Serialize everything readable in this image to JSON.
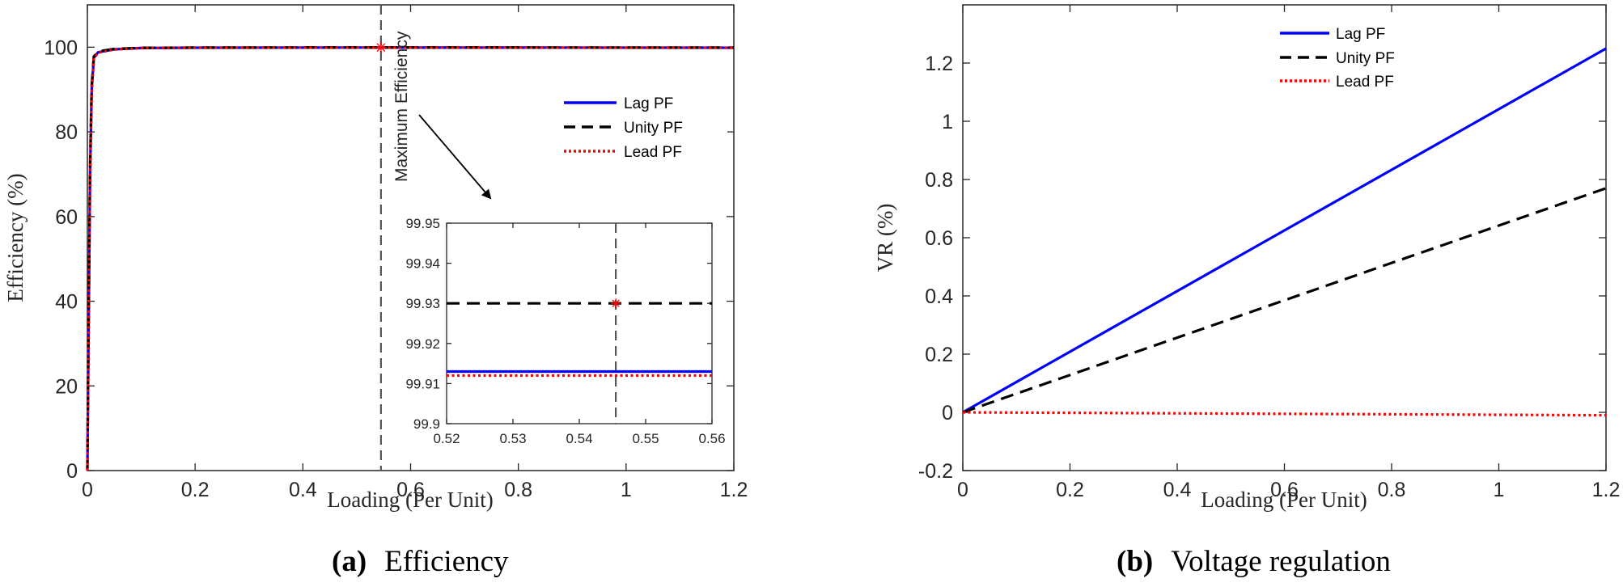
{
  "chart_data": [
    {
      "type": "line",
      "caption_label": "(a)",
      "caption_text": "Efficiency",
      "xlabel": "Loading (Per Unit)",
      "ylabel": "Efficiency (%)",
      "xlim": [
        0,
        1.2
      ],
      "ylim": [
        0,
        110
      ],
      "xticks": [
        0,
        0.2,
        0.4,
        0.6,
        0.8,
        1,
        1.2
      ],
      "xtick_labels": [
        "0",
        "0.2",
        "0.4",
        "0.6",
        "0.8",
        "1",
        "1.2"
      ],
      "yticks": [
        0,
        20,
        40,
        60,
        80,
        100
      ],
      "ytick_labels": [
        "0",
        "20",
        "40",
        "60",
        "80",
        "100"
      ],
      "legend_position": "center-right",
      "series": [
        {
          "name": "Lag PF",
          "color": "#0000ff",
          "style": "solid",
          "x": [
            0,
            0.002,
            0.005,
            0.008,
            0.012,
            0.02,
            0.05,
            0.1,
            0.2,
            0.5,
            0.8,
            1.2
          ],
          "y": [
            0,
            30,
            70,
            90,
            97.5,
            98.8,
            99.5,
            99.8,
            99.88,
            99.91,
            99.9,
            99.87
          ]
        },
        {
          "name": "Unity PF",
          "color": "#000000",
          "style": "dashed",
          "x": [
            0,
            0.002,
            0.005,
            0.008,
            0.012,
            0.02,
            0.05,
            0.1,
            0.2,
            0.5,
            0.8,
            1.2
          ],
          "y": [
            0,
            32,
            72,
            91,
            97.8,
            99,
            99.6,
            99.85,
            99.9,
            99.93,
            99.92,
            99.9
          ]
        },
        {
          "name": "Lead PF",
          "color": "#ff0000",
          "style": "dotted",
          "x": [
            0,
            0.002,
            0.005,
            0.008,
            0.012,
            0.02,
            0.05,
            0.1,
            0.2,
            0.5,
            0.8,
            1.2
          ],
          "y": [
            0,
            29,
            69,
            89,
            97.4,
            98.7,
            99.45,
            99.78,
            99.87,
            99.91,
            99.9,
            99.86
          ]
        }
      ],
      "max_efficiency": {
        "x": 0.545,
        "y": 99.93,
        "label": "Maximum Efficiency"
      },
      "inset": {
        "xlim": [
          0.52,
          0.56
        ],
        "ylim": [
          99.9,
          99.95
        ],
        "xticks": [
          0.52,
          0.53,
          0.54,
          0.55,
          0.56
        ],
        "xtick_labels": [
          "0.52",
          "0.53",
          "0.54",
          "0.55",
          "0.56"
        ],
        "yticks": [
          99.9,
          99.91,
          99.92,
          99.93,
          99.94,
          99.95
        ],
        "ytick_labels": [
          "99.9",
          "99.91",
          "99.92",
          "99.93",
          "99.94",
          "99.95"
        ],
        "series": [
          {
            "name": "Lag PF",
            "x": [
              0.52,
              0.56
            ],
            "y": [
              99.913,
              99.913
            ]
          },
          {
            "name": "Unity PF",
            "x": [
              0.52,
              0.56
            ],
            "y": [
              99.93,
              99.93
            ]
          },
          {
            "name": "Lead PF",
            "x": [
              0.52,
              0.56
            ],
            "y": [
              99.912,
              99.912
            ]
          }
        ],
        "max_point": {
          "x": 0.5455,
          "y": 99.93
        }
      }
    },
    {
      "type": "line",
      "caption_label": "(b)",
      "caption_text": "Voltage regulation",
      "xlabel": "Loading (Per Unit)",
      "ylabel": "VR (%)",
      "xlim": [
        0,
        1.2
      ],
      "ylim": [
        -0.2,
        1.4
      ],
      "xticks": [
        0,
        0.2,
        0.4,
        0.6,
        0.8,
        1,
        1.2
      ],
      "xtick_labels": [
        "0",
        "0.2",
        "0.4",
        "0.6",
        "0.8",
        "1",
        "1.2"
      ],
      "yticks": [
        -0.2,
        0,
        0.2,
        0.4,
        0.6,
        0.8,
        1,
        1.2
      ],
      "ytick_labels": [
        "-0.2",
        "0",
        "0.2",
        "0.4",
        "0.6",
        "0.8",
        "1",
        "1.2"
      ],
      "legend_position": "top-center",
      "series": [
        {
          "name": "Lag PF",
          "color": "#0000ff",
          "style": "solid",
          "x": [
            0,
            1.2
          ],
          "y": [
            0,
            1.25
          ]
        },
        {
          "name": "Unity PF",
          "color": "#000000",
          "style": "dashed",
          "x": [
            0,
            1.2
          ],
          "y": [
            0,
            0.77
          ]
        },
        {
          "name": "Lead PF",
          "color": "#ff0000",
          "style": "dotted",
          "x": [
            0,
            1.2
          ],
          "y": [
            0,
            -0.01
          ]
        }
      ]
    }
  ]
}
